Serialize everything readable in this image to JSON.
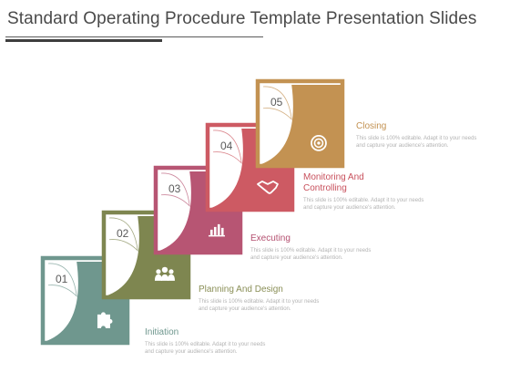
{
  "title": "Standard Operating Procedure Template Presentation Slides",
  "steps": [
    {
      "number": "01",
      "heading": "Initiation",
      "description": "This slide is 100% editable. Adapt it to your needs and capture your audience's attention.",
      "icon": "puzzle-icon",
      "color": "#6f978e",
      "heading_color": "#6f978e"
    },
    {
      "number": "02",
      "heading": "Planning And Design",
      "description": "This slide is 100% editable. Adapt it to your needs and capture your audience's attention.",
      "icon": "team-icon",
      "color": "#7e8650",
      "heading_color": "#8a8f57"
    },
    {
      "number": "03",
      "heading": "Executing",
      "description": "This slide is 100% editable. Adapt it to your needs and capture your audience's attention.",
      "icon": "bar-chart-icon",
      "color": "#b75573",
      "heading_color": "#b45070"
    },
    {
      "number": "04",
      "heading": "Monitoring And Controlling",
      "description": "This slide is 100% editable. Adapt it to your needs and capture your audience's attention.",
      "icon": "handshake-icon",
      "color": "#cd5a63",
      "heading_color": "#c8505c"
    },
    {
      "number": "05",
      "heading": "Closing",
      "description": "This slide is 100% editable. Adapt it to your needs and capture your audience's attention.",
      "icon": "target-icon",
      "color": "#c39252",
      "heading_color": "#c39252"
    }
  ]
}
